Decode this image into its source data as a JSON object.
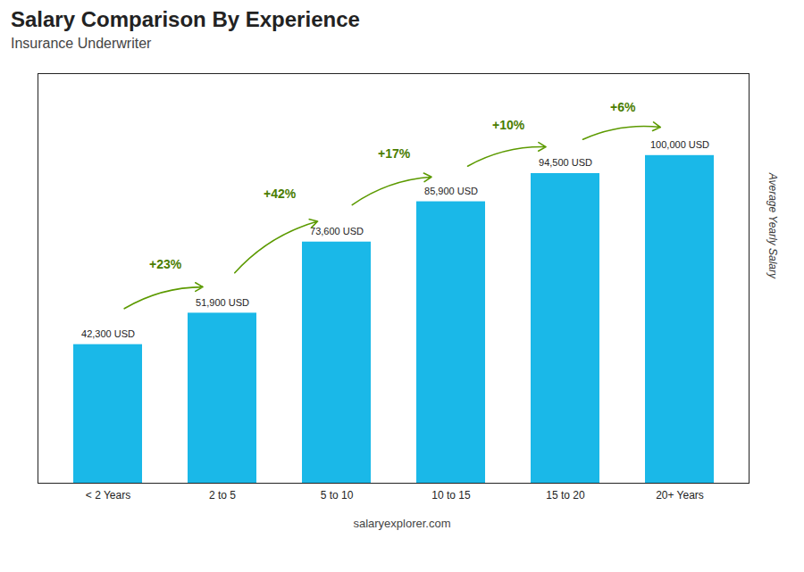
{
  "chart_data": {
    "type": "bar",
    "title": "Salary Comparison By Experience",
    "subtitle": "Insurance Underwriter",
    "ylabel": "Average Yearly Salary",
    "caption": "salaryexplorer.com",
    "categories": [
      "< 2 Years",
      "2 to 5",
      "5 to 10",
      "10 to 15",
      "15 to 20",
      "20+ Years"
    ],
    "values": [
      42300,
      51900,
      73600,
      85900,
      94500,
      100000
    ],
    "value_labels": [
      "42,300 USD",
      "51,900 USD",
      "73,600 USD",
      "85,900 USD",
      "94,500 USD",
      "100,000 USD"
    ],
    "data_labels": true,
    "annotations": [
      "+23%",
      "+42%",
      "+17%",
      "+10%",
      "+6%"
    ],
    "color": "#1ab8e8",
    "ylim": [
      0,
      125000
    ],
    "tick_labels": "x",
    "grid": false
  }
}
